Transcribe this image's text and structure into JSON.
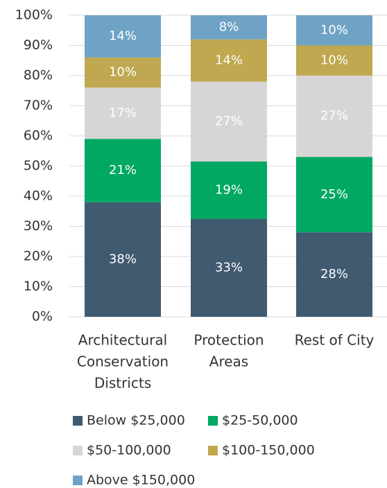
{
  "chart_data": {
    "type": "stacked_bar",
    "categories": [
      [
        "Architectural",
        "Conservation",
        "Districts"
      ],
      [
        "Protection",
        "Areas"
      ],
      [
        "Rest of City"
      ]
    ],
    "series": [
      {
        "name": "Below $25,000",
        "color": "#405a70",
        "values": [
          38,
          32.5,
          28
        ],
        "value_labels": [
          "38%",
          "33%",
          "28%"
        ]
      },
      {
        "name": "$25-50,000",
        "color": "#00a862",
        "values": [
          21,
          19,
          25
        ],
        "value_labels": [
          "21%",
          "19%",
          "25%"
        ]
      },
      {
        "name": "$50-100,000",
        "color": "#d6d6d6",
        "values": [
          17,
          26.5,
          27
        ],
        "value_labels": [
          "17%",
          "27%",
          "27%"
        ]
      },
      {
        "name": "$100-150,000",
        "color": "#bfa84f",
        "values": [
          10,
          14,
          10
        ],
        "value_labels": [
          "10%",
          "14%",
          "10%"
        ]
      },
      {
        "name": "Above $150,000",
        "color": "#6fa3c6",
        "values": [
          14,
          8,
          10
        ],
        "value_labels": [
          "14%",
          "8%",
          "10%"
        ]
      }
    ],
    "ylim": [
      0,
      100
    ],
    "yticks": [
      {
        "value": 0,
        "label": "0%"
      },
      {
        "value": 10,
        "label": "10%"
      },
      {
        "value": 20,
        "label": "20%"
      },
      {
        "value": 30,
        "label": "30%"
      },
      {
        "value": 40,
        "label": "40%"
      },
      {
        "value": 50,
        "label": "50%"
      },
      {
        "value": 60,
        "label": "60%"
      },
      {
        "value": 70,
        "label": "70%"
      },
      {
        "value": 80,
        "label": "80%"
      },
      {
        "value": 90,
        "label": "90%"
      },
      {
        "value": 100,
        "label": "100%"
      }
    ],
    "grid": true
  }
}
